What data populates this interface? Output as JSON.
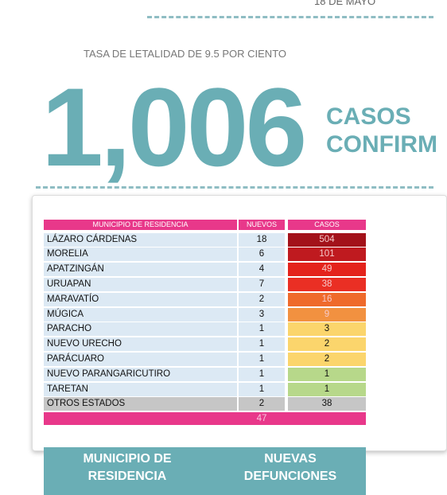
{
  "header": {
    "date": "18 DE MAYO",
    "subtitle": "TASA DE LETALIDAD DE 9.5 POR CIENTO",
    "big_number": "1,006",
    "label_line1": "CASOS",
    "label_line2": "CONFIRM"
  },
  "table": {
    "headers": [
      "MUNICIPIO DE RESIDENCIA",
      "NUEVOS",
      "CASOS"
    ],
    "rows": [
      [
        "LÁZARO CÁRDENAS",
        18,
        504
      ],
      [
        "MORELIA",
        6,
        101
      ],
      [
        "APATZINGÁN",
        4,
        49
      ],
      [
        "URUAPAN",
        7,
        38
      ],
      [
        "MARAVATÍO",
        2,
        16
      ],
      [
        "MÚGICA",
        3,
        9
      ],
      [
        "PARACHO",
        1,
        3
      ],
      [
        "NUEVO URECHO",
        1,
        2
      ],
      [
        "PARÁCUARO",
        1,
        2
      ],
      [
        "NUEVO PARANGARICUTIRO",
        1,
        1
      ],
      [
        "TARETAN",
        1,
        1
      ],
      [
        "OTROS ESTADOS",
        2,
        38
      ]
    ],
    "colors": [
      "#a3121a",
      "#bf1a1f",
      "#e4231c",
      "#ea2f24",
      "#ef6a2b",
      "#f29140",
      "#fbd56c",
      "#fbd56c",
      "#fbd56c",
      "#b7d88a",
      "#b7d88a",
      "#c6c6c6"
    ],
    "total_nuevos": 47
  },
  "footer": {
    "col1": "MUNICIPIO DE RESIDENCIA",
    "col2": "NUEVAS DEFUNCIONES"
  }
}
